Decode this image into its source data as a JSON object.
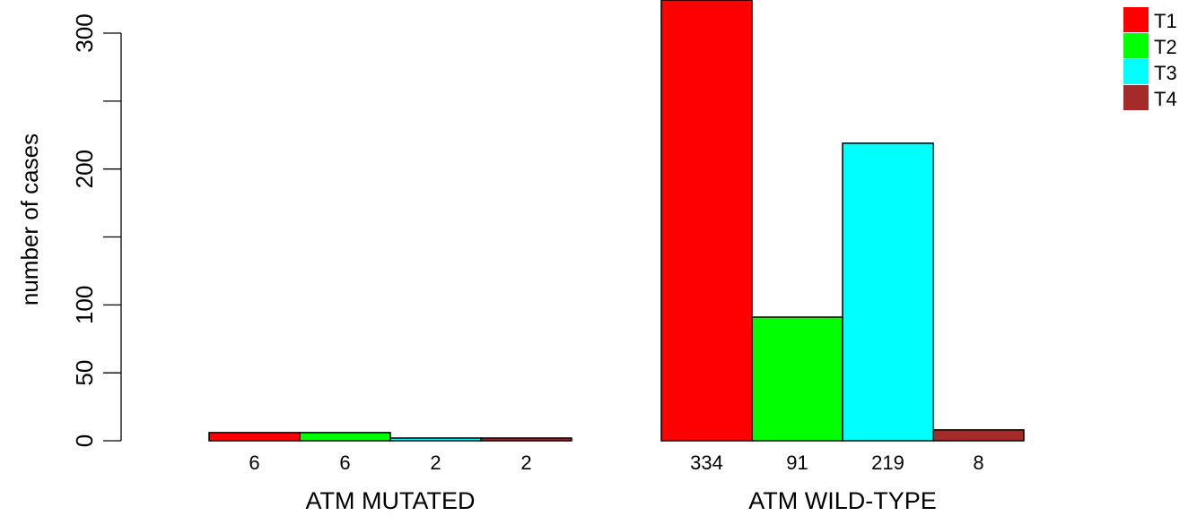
{
  "chart_data": {
    "type": "bar",
    "ylabel": "number of cases",
    "yticks": [
      0,
      50,
      100,
      200,
      300
    ],
    "ylim": [
      0,
      325
    ],
    "groups": [
      {
        "label": "ATM MUTATED",
        "values": [
          6,
          6,
          2,
          2
        ]
      },
      {
        "label": "ATM WILD-TYPE",
        "values": [
          334,
          91,
          219,
          8
        ]
      }
    ],
    "series": [
      {
        "name": "T1",
        "color": "#FF0000"
      },
      {
        "name": "T2",
        "color": "#00FF00"
      },
      {
        "name": "T3",
        "color": "#00FFFF"
      },
      {
        "name": "T4",
        "color": "#A52A2A"
      }
    ],
    "legend_position": "top-right"
  }
}
